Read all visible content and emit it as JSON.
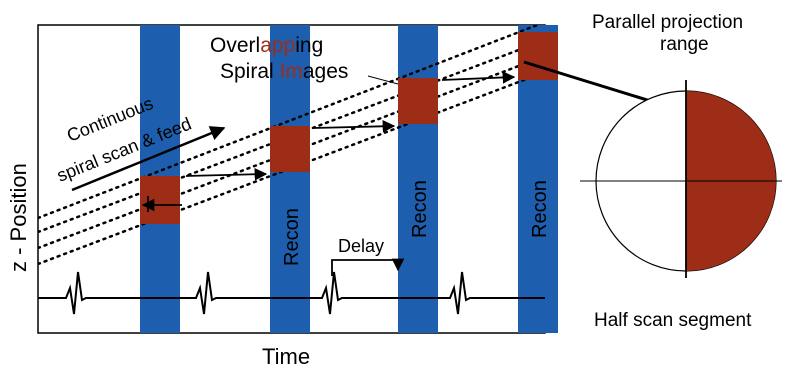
{
  "labels": {
    "title_line1_prefix": "Overl",
    "title_line1_highlight": "app",
    "title_line1_suffix": "ing",
    "title_line2_prefix": "Spiral ",
    "title_line2_highlight": "Im",
    "title_line2_suffix": "ages",
    "scan_line1": "Continuous",
    "scan_line2": "spiral scan & feed",
    "y_axis": "z - Position",
    "x_axis": "Time",
    "delay": "Delay",
    "recon": "Recon",
    "projection_line1": "Parallel projection",
    "projection_line2": "range",
    "half_scan": "Half scan segment"
  },
  "colors": {
    "recon_band": "#1d5fae",
    "image_block": "#9e2d17",
    "highlight_text": "#9e2d17",
    "line": "#000000",
    "background": "#ffffff"
  }
}
